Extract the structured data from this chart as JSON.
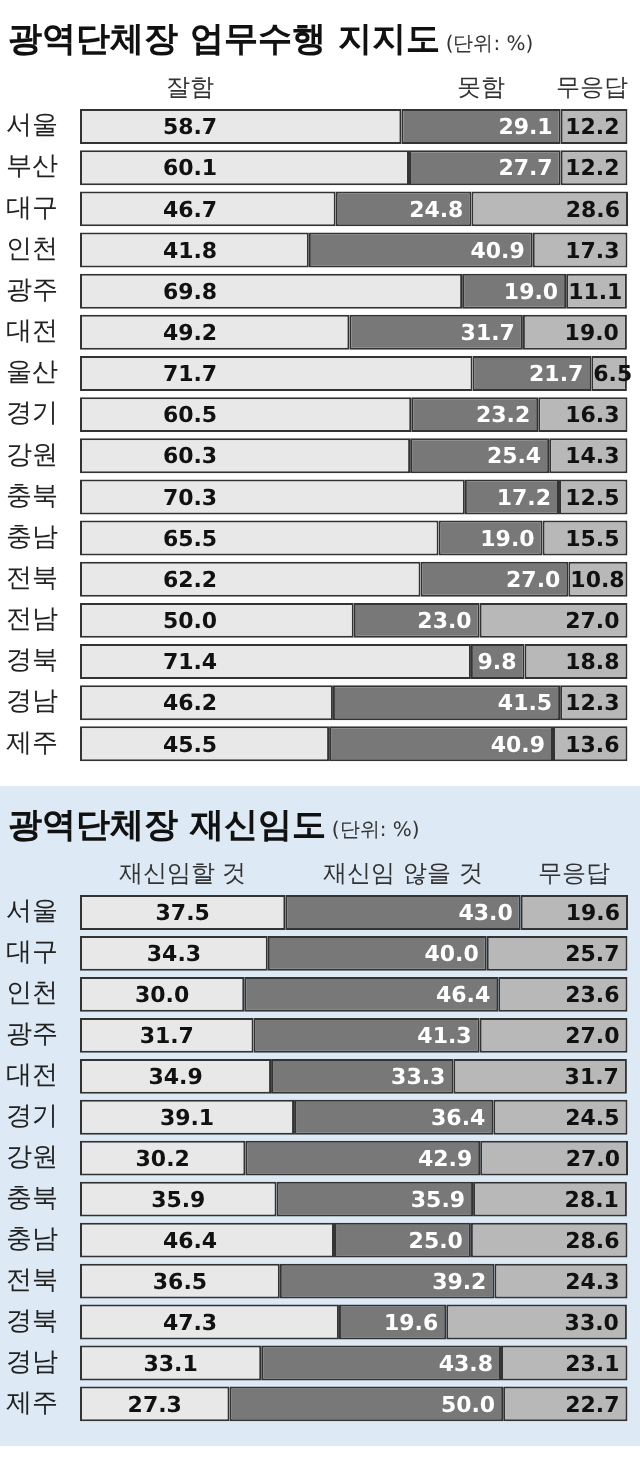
{
  "chart_data": [
    {
      "type": "bar",
      "orientation": "horizontal",
      "stacked": true,
      "legend": "top",
      "title": "광역단체장 업무수행 지지도",
      "subtitle": "(단위: %)",
      "categories": [
        "서울",
        "부산",
        "대구",
        "인천",
        "광주",
        "대전",
        "울산",
        "경기",
        "강원",
        "충북",
        "충남",
        "전북",
        "전남",
        "경북",
        "경남",
        "제주"
      ],
      "series": [
        {
          "name": "잘함",
          "color": "#e8e8e8",
          "values": [
            58.7,
            60.1,
            46.7,
            41.8,
            69.8,
            49.2,
            71.7,
            60.5,
            60.3,
            70.3,
            65.5,
            62.2,
            50.0,
            71.4,
            46.2,
            45.5
          ],
          "value_labels": [
            "58.7",
            "60.1",
            "46.7",
            "41.8",
            "69.8",
            "49.2",
            "71.7",
            "60.5",
            "60.3",
            "70.3",
            "65.5",
            "62.2",
            "50.0",
            "71.4",
            "46.2",
            "45.5"
          ]
        },
        {
          "name": "못함",
          "color": "#787878",
          "values": [
            29.1,
            27.7,
            24.8,
            40.9,
            19.0,
            31.7,
            21.7,
            23.2,
            25.4,
            17.2,
            19.0,
            27.0,
            23.0,
            9.8,
            41.5,
            40.9
          ],
          "value_labels": [
            "29.1",
            "27.7",
            "24.8",
            "40.9",
            "19.0",
            "31.7",
            "21.7",
            "23.2",
            "25.4",
            "17.2",
            "19.0",
            "27.0",
            "23.0",
            "9.8",
            "41.5",
            "40.9"
          ]
        },
        {
          "name": "무응답",
          "color": "#b8b8b8",
          "values": [
            12.2,
            12.2,
            28.6,
            17.3,
            11.1,
            19.0,
            6.5,
            16.3,
            14.3,
            12.5,
            15.5,
            10.8,
            27.0,
            18.8,
            12.3,
            13.6
          ],
          "value_labels": [
            "12.2",
            "12.2",
            "28.6",
            "17.3",
            "11.1",
            "19.0",
            "6.5",
            "16.3",
            "14.3",
            "12.5",
            "15.5",
            "10.8",
            "27.0",
            "18.8",
            "12.3",
            "13.6"
          ]
        }
      ]
    },
    {
      "type": "bar",
      "orientation": "horizontal",
      "stacked": true,
      "legend": "top",
      "title": "광역단체장 재신임도",
      "subtitle": "(단위: %)",
      "categories": [
        "서울",
        "대구",
        "인천",
        "광주",
        "대전",
        "경기",
        "강원",
        "충북",
        "충남",
        "전북",
        "경북",
        "경남",
        "제주"
      ],
      "series": [
        {
          "name": "재신임할 것",
          "color": "#e8e8e8",
          "values": [
            37.5,
            34.3,
            30.0,
            31.7,
            34.9,
            39.1,
            30.2,
            35.9,
            46.4,
            36.5,
            47.3,
            33.1,
            27.3
          ],
          "value_labels": [
            "37.5",
            "34.3",
            "30.0",
            "31.7",
            "34.9",
            "39.1",
            "30.2",
            "35.9",
            "46.4",
            "36.5",
            "47.3",
            "33.1",
            "27.3"
          ]
        },
        {
          "name": "재신임 않을 것",
          "color": "#787878",
          "values": [
            43.0,
            40.0,
            46.4,
            41.3,
            33.3,
            36.4,
            42.9,
            35.9,
            25.0,
            39.2,
            19.6,
            43.8,
            50.0
          ],
          "value_labels": [
            "43.0",
            "40.0",
            "46.4",
            "41.3",
            "33.3",
            "36.4",
            "42.9",
            "35.9",
            "25.0",
            "39.2",
            "19.6",
            "43.8",
            "50.0"
          ]
        },
        {
          "name": "무응답",
          "color": "#b8b8b8",
          "values": [
            19.6,
            25.7,
            23.6,
            27.0,
            31.7,
            24.5,
            27.0,
            28.1,
            28.6,
            24.3,
            33.0,
            23.1,
            22.7
          ],
          "value_labels": [
            "19.6",
            "25.7",
            "23.6",
            "27.0",
            "31.7",
            "24.5",
            "27.0",
            "28.1",
            "28.6",
            "24.3",
            "33.0",
            "23.1",
            "22.7"
          ]
        }
      ]
    }
  ]
}
